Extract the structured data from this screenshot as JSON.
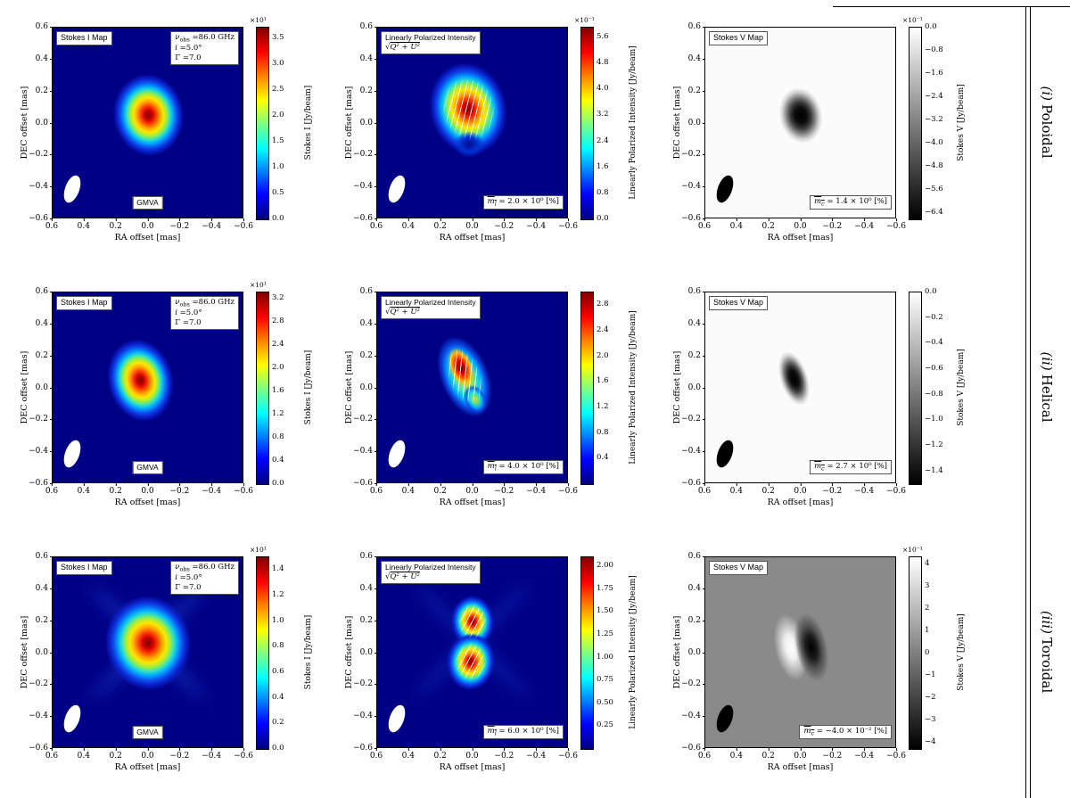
{
  "axes": {
    "xlabel": "RA offset [mas]",
    "ylabel": "DEC offset [mas]",
    "ticks": [
      "0.6",
      "0.4",
      "0.2",
      "0.0",
      "−0.2",
      "−0.4",
      "−0.6"
    ]
  },
  "row_labels": [
    {
      "prefix": "(i)",
      "name": "Poloidal"
    },
    {
      "prefix": "(ii)",
      "name": "Helical"
    },
    {
      "prefix": "(iii)",
      "name": "Toroidal"
    }
  ],
  "rows": [
    {
      "stokes_i": {
        "title": "Stokes I Map",
        "legend": {
          "nu_sym": "ν",
          "nu_sub": "obs",
          "nu_val": " =86.0 GHz",
          "i_sym": "i",
          "i_val": " =5.0°",
          "gamma_sym": "Γ",
          "gamma_val": " =7.0"
        },
        "instrument": "GMVA",
        "colorbar": {
          "exponent": "×10¹",
          "label": "Stokes I [Jy/beam]",
          "vmin": 0,
          "vmax": 3.7,
          "tick_labels": [
            "3.5",
            "3.0",
            "2.5",
            "2.0",
            "1.5",
            "1.0",
            "0.5",
            "0.0"
          ],
          "tick_values": [
            3.5,
            3.0,
            2.5,
            2.0,
            1.5,
            1.0,
            0.5,
            0.0
          ]
        }
      },
      "lin_pol": {
        "title": "Linearly Polarized Intensity",
        "sqrt_sym": "√",
        "sqrt_expr": "Q² + U²",
        "frac": {
          "sym": "m",
          "sub": "l",
          "val": " = 2.0 × 10⁰ [%]"
        },
        "colorbar": {
          "exponent": "×10⁻¹",
          "label": "Linearly Polarized Intensity [Jy/beam]",
          "vmin": 0,
          "vmax": 5.9,
          "tick_labels": [
            "5.6",
            "4.8",
            "4.0",
            "3.2",
            "2.4",
            "1.6",
            "0.8",
            "0.0"
          ],
          "tick_values": [
            5.6,
            4.8,
            4.0,
            3.2,
            2.4,
            1.6,
            0.8,
            0.0
          ]
        }
      },
      "stokes_v": {
        "title": "Stokes V Map",
        "frac": {
          "sym": "m",
          "sub": "c",
          "val": " = 1.4 × 10⁰ [%]"
        },
        "colorbar": {
          "exponent": "×10⁻¹",
          "label": "Stokes V [Jy/beam]",
          "vmin": -6.6,
          "vmax": 0,
          "tick_labels": [
            "0.0",
            "−0.8",
            "−1.6",
            "−2.4",
            "−3.2",
            "−4.0",
            "−4.8",
            "−5.6",
            "−6.4"
          ],
          "tick_values": [
            0,
            -0.8,
            -1.6,
            -2.4,
            -3.2,
            -4.0,
            -4.8,
            -5.6,
            -6.4
          ]
        }
      }
    },
    {
      "stokes_i": {
        "title": "Stokes I Map",
        "legend": {
          "nu_sym": "ν",
          "nu_sub": "obs",
          "nu_val": " =86.0 GHz",
          "i_sym": "i",
          "i_val": " =5.0°",
          "gamma_sym": "Γ",
          "gamma_val": " =7.0"
        },
        "instrument": "GMVA",
        "colorbar": {
          "exponent": "×10¹",
          "label": "Stokes I [Jy/beam]",
          "vmin": 0,
          "vmax": 3.3,
          "tick_labels": [
            "3.2",
            "2.8",
            "2.4",
            "2.0",
            "1.6",
            "1.2",
            "0.8",
            "0.4",
            "0.0"
          ],
          "tick_values": [
            3.2,
            2.8,
            2.4,
            2.0,
            1.6,
            1.2,
            0.8,
            0.4,
            0.0
          ]
        }
      },
      "lin_pol": {
        "title": "Linearly Polarized Intensity",
        "sqrt_sym": "√",
        "sqrt_expr": "Q² + U²",
        "frac": {
          "sym": "m",
          "sub": "l",
          "val": " = 4.0 × 10⁰ [%]"
        },
        "colorbar": {
          "label": "Linearly Polarized Intensity [Jy/beam]",
          "vmin": 0,
          "vmax": 3.0,
          "tick_labels": [
            "2.8",
            "2.4",
            "2.0",
            "1.6",
            "1.2",
            "0.8",
            "0.4"
          ],
          "tick_values": [
            2.8,
            2.4,
            2.0,
            1.6,
            1.2,
            0.8,
            0.4
          ]
        }
      },
      "stokes_v": {
        "title": "Stokes V Map",
        "frac": {
          "sym": "m",
          "sub": "c",
          "val": " = 2.7 × 10⁰ [%]"
        },
        "colorbar": {
          "label": "Stokes V [Jy/beam]",
          "vmin": -1.5,
          "vmax": 0,
          "tick_labels": [
            "0.0",
            "−0.2",
            "−0.4",
            "−0.6",
            "−0.8",
            "−1.0",
            "−1.2",
            "−1.4"
          ],
          "tick_values": [
            0,
            -0.2,
            -0.4,
            -0.6,
            -0.8,
            -1.0,
            -1.2,
            -1.4
          ]
        }
      }
    },
    {
      "stokes_i": {
        "title": "Stokes I Map",
        "legend": {
          "nu_sym": "ν",
          "nu_sub": "obs",
          "nu_val": " =86.0 GHz",
          "i_sym": "i",
          "i_val": " =5.0°",
          "gamma_sym": "Γ",
          "gamma_val": " =7.0"
        },
        "instrument": "GMVA",
        "colorbar": {
          "exponent": "×10¹",
          "label": "Stokes I [Jy/beam]",
          "vmin": 0,
          "vmax": 1.5,
          "tick_labels": [
            "1.4",
            "1.2",
            "1.0",
            "0.8",
            "0.6",
            "0.4",
            "0.2",
            "0.0"
          ],
          "tick_values": [
            1.4,
            1.2,
            1.0,
            0.8,
            0.6,
            0.4,
            0.2,
            0.0
          ]
        }
      },
      "lin_pol": {
        "title": "Linearly Polarized Intensity",
        "sqrt_sym": "√",
        "sqrt_expr": "Q² + U²",
        "frac": {
          "sym": "m",
          "sub": "l",
          "val": " = 6.0 × 10⁰ [%]"
        },
        "colorbar": {
          "label": "Linearly Polarized Intensity [Jy/beam]",
          "vmin": 0,
          "vmax": 2.1,
          "tick_labels": [
            "2.00",
            "1.75",
            "1.50",
            "1.25",
            "1.00",
            "0.75",
            "0.50",
            "0.25"
          ],
          "tick_values": [
            2.0,
            1.75,
            1.5,
            1.25,
            1.0,
            0.75,
            0.5,
            0.25
          ]
        }
      },
      "stokes_v": {
        "title": "Stokes V Map",
        "frac": {
          "sym": "m",
          "sub": "c",
          "val": " = −4.0 × 10⁻² [%]"
        },
        "colorbar": {
          "exponent": "×10⁻¹",
          "label": "Stokes V [Jy/beam]",
          "vmin": -4.3,
          "vmax": 4.3,
          "tick_labels": [
            "4",
            "3",
            "2",
            "1",
            "0",
            "−1",
            "−2",
            "−3",
            "−4"
          ],
          "tick_values": [
            4,
            3,
            2,
            1,
            0,
            -1,
            -2,
            -3,
            -4
          ]
        }
      }
    }
  ],
  "chart_data": [
    {
      "row": "(i) Poloidal",
      "panel": "Stokes I Map",
      "type": "heatmap",
      "colormap": "jet",
      "xlabel": "RA offset [mas]",
      "ylabel": "DEC offset [mas]",
      "x_range": [
        0.6,
        -0.6
      ],
      "y_range": [
        -0.6,
        0.6
      ],
      "colorbar_label": "Stokes I [Jy/beam]",
      "colorbar_exponent": "×10¹",
      "colorbar_ticks": [
        3.5,
        3.0,
        2.5,
        2.0,
        1.5,
        1.0,
        0.5,
        0.0
      ],
      "peak": {
        "ra_mas": 0.0,
        "dec_mas": 0.05
      },
      "morphology": "single compact elliptical source, red core on deep-blue background, white beam ellipse bottom-left",
      "annotations": [
        "Stokes I Map",
        "νobs =86.0 GHz",
        "i =5.0°",
        "Γ =7.0",
        "GMVA"
      ]
    },
    {
      "row": "(i) Poloidal",
      "panel": "Linearly Polarized Intensity",
      "type": "heatmap",
      "colormap": "jet",
      "xlabel": "RA offset [mas]",
      "ylabel": "DEC offset [mas]",
      "x_range": [
        0.6,
        -0.6
      ],
      "y_range": [
        -0.6,
        0.6
      ],
      "colorbar_label": "Linearly Polarized Intensity [Jy/beam]",
      "colorbar_exponent": "×10⁻¹",
      "colorbar_ticks": [
        5.6,
        4.8,
        4.0,
        3.2,
        2.4,
        1.6,
        0.8,
        0.0
      ],
      "peak": {
        "ra_mas": 0.05,
        "dec_mas": 0.1
      },
      "morphology": "broad blob with lower-center depolarized notch, EVPA tick overlay",
      "annotations": [
        "Linearly Polarized Intensity",
        "√Q² + U²",
        "m̄l = 2.0 × 10⁰ [%]"
      ]
    },
    {
      "row": "(i) Poloidal",
      "panel": "Stokes V Map",
      "type": "heatmap",
      "colormap": "gray",
      "xlabel": "RA offset [mas]",
      "ylabel": "DEC offset [mas]",
      "x_range": [
        0.6,
        -0.6
      ],
      "y_range": [
        -0.6,
        0.6
      ],
      "colorbar_label": "Stokes V [Jy/beam]",
      "colorbar_exponent": "×10⁻¹",
      "colorbar_ticks": [
        0.0,
        -0.8,
        -1.6,
        -2.4,
        -3.2,
        -4.0,
        -4.8,
        -5.6,
        -6.4
      ],
      "peak": {
        "ra_mas": 0.0,
        "dec_mas": 0.05
      },
      "morphology": "single dark (negative) compact blob on white background, black beam ellipse bottom-left",
      "annotations": [
        "Stokes V Map",
        "m̄c = 1.4 × 10⁰ [%]"
      ]
    },
    {
      "row": "(ii) Helical",
      "panel": "Stokes I Map",
      "type": "heatmap",
      "colormap": "jet",
      "xlabel": "RA offset [mas]",
      "ylabel": "DEC offset [mas]",
      "x_range": [
        0.6,
        -0.6
      ],
      "y_range": [
        -0.6,
        0.6
      ],
      "colorbar_label": "Stokes I [Jy/beam]",
      "colorbar_exponent": "×10¹",
      "colorbar_ticks": [
        3.2,
        2.8,
        2.4,
        2.0,
        1.6,
        1.2,
        0.8,
        0.4,
        0.0
      ],
      "peak": {
        "ra_mas": 0.05,
        "dec_mas": 0.05
      },
      "morphology": "tilted compact elliptical source",
      "annotations": [
        "Stokes I Map",
        "νobs =86.0 GHz",
        "i =5.0°",
        "Γ =7.0",
        "GMVA"
      ]
    },
    {
      "row": "(ii) Helical",
      "panel": "Linearly Polarized Intensity",
      "type": "heatmap",
      "colormap": "jet",
      "xlabel": "RA offset [mas]",
      "ylabel": "DEC offset [mas]",
      "x_range": [
        0.6,
        -0.6
      ],
      "y_range": [
        -0.6,
        0.6
      ],
      "colorbar_label": "Linearly Polarized Intensity [Jy/beam]",
      "colorbar_ticks": [
        2.8,
        2.4,
        2.0,
        1.6,
        1.2,
        0.8,
        0.4
      ],
      "peak": {
        "ra_mas": 0.1,
        "dec_mas": 0.1
      },
      "morphology": "narrow elongated tilted polarized ridge with secondary extension, EVPA tick overlay",
      "annotations": [
        "Linearly Polarized Intensity",
        "√Q² + U²",
        "m̄l = 4.0 × 10⁰ [%]"
      ]
    },
    {
      "row": "(ii) Helical",
      "panel": "Stokes V Map",
      "type": "heatmap",
      "colormap": "gray",
      "xlabel": "RA offset [mas]",
      "ylabel": "DEC offset [mas]",
      "x_range": [
        0.6,
        -0.6
      ],
      "y_range": [
        -0.6,
        0.6
      ],
      "colorbar_label": "Stokes V [Jy/beam]",
      "colorbar_ticks": [
        0.0,
        -0.2,
        -0.4,
        -0.6,
        -0.8,
        -1.0,
        -1.2,
        -1.4
      ],
      "peak": {
        "ra_mas": 0.05,
        "dec_mas": 0.05
      },
      "morphology": "elongated dark (negative) blob on white background",
      "annotations": [
        "Stokes V Map",
        "m̄c = 2.7 × 10⁰ [%]"
      ]
    },
    {
      "row": "(iii) Toroidal",
      "panel": "Stokes I Map",
      "type": "heatmap",
      "colormap": "jet",
      "xlabel": "RA offset [mas]",
      "ylabel": "DEC offset [mas]",
      "x_range": [
        0.6,
        -0.6
      ],
      "y_range": [
        -0.6,
        0.6
      ],
      "colorbar_label": "Stokes I [Jy/beam]",
      "colorbar_exponent": "×10¹",
      "colorbar_ticks": [
        1.4,
        1.2,
        1.0,
        0.8,
        0.6,
        0.4,
        0.2,
        0.0
      ],
      "peak": {
        "ra_mas": 0.0,
        "dec_mas": 0.05
      },
      "morphology": "large bright blob with faint X-shaped sidelobe pattern",
      "annotations": [
        "Stokes I Map",
        "νobs =86.0 GHz",
        "i =5.0°",
        "Γ =7.0",
        "GMVA"
      ]
    },
    {
      "row": "(iii) Toroidal",
      "panel": "Linearly Polarized Intensity",
      "type": "heatmap",
      "colormap": "jet",
      "xlabel": "RA offset [mas]",
      "ylabel": "DEC offset [mas]",
      "x_range": [
        0.6,
        -0.6
      ],
      "y_range": [
        -0.6,
        0.6
      ],
      "colorbar_label": "Linearly Polarized Intensity [Jy/beam]",
      "colorbar_ticks": [
        2.0,
        1.75,
        1.5,
        1.25,
        1.0,
        0.75,
        0.5,
        0.25
      ],
      "peak": {
        "ra_mas": 0.0,
        "dec_mas": 0.2
      },
      "morphology": "two vertically separated polarized components (upper and lower) with faint X pattern, EVPA tick overlay",
      "annotations": [
        "Linearly Polarized Intensity",
        "√Q² + U²",
        "m̄l = 6.0 × 10⁰ [%]"
      ]
    },
    {
      "row": "(iii) Toroidal",
      "panel": "Stokes V Map",
      "type": "heatmap",
      "colormap": "gray",
      "xlabel": "RA offset [mas]",
      "ylabel": "DEC offset [mas]",
      "x_range": [
        0.6,
        -0.6
      ],
      "y_range": [
        -0.6,
        0.6
      ],
      "colorbar_label": "Stokes V [Jy/beam]",
      "colorbar_exponent": "×10⁻¹",
      "colorbar_ticks": [
        4,
        3,
        2,
        1,
        0,
        -1,
        -2,
        -3,
        -4
      ],
      "peak": {
        "ra_mas": 0.05,
        "dec_mas": 0.0
      },
      "morphology": "dipolar pattern: white (positive) blob left of black (negative) blob on mid-gray background",
      "annotations": [
        "Stokes V Map",
        "m̄c = −4.0 × 10⁻² [%]"
      ]
    }
  ]
}
